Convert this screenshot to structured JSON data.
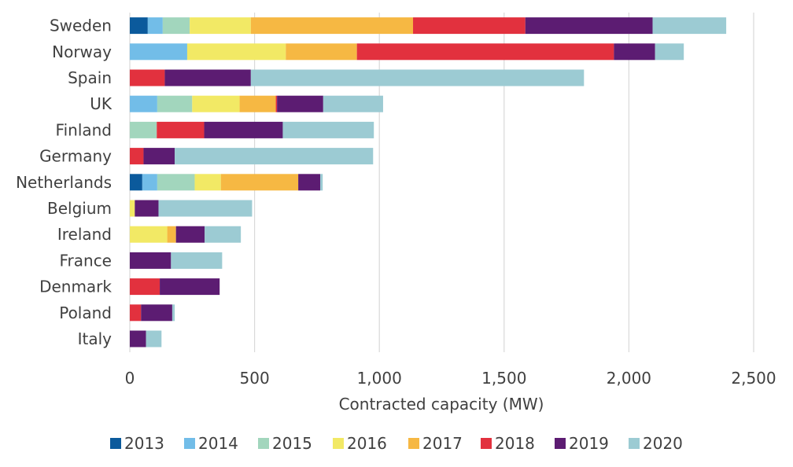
{
  "chart_data": {
    "type": "bar",
    "orientation": "horizontal",
    "stacked": true,
    "title": "",
    "xlabel": "Contracted capacity (MW)",
    "ylabel": "",
    "xlim": [
      0,
      2500
    ],
    "xticks": [
      0,
      500,
      1000,
      1500,
      2000,
      2500
    ],
    "xtick_labels": [
      "0",
      "500",
      "1,000",
      "1,500",
      "2,000",
      "2,500"
    ],
    "grid": "vertical",
    "legend_position": "bottom",
    "categories": [
      "Sweden",
      "Norway",
      "Spain",
      "UK",
      "Finland",
      "Germany",
      "Netherlands",
      "Belgium",
      "Ireland",
      "France",
      "Denmark",
      "Poland",
      "Italy"
    ],
    "series": [
      {
        "name": "2013",
        "color": "#0b5a9c",
        "values": [
          72,
          0,
          0,
          0,
          0,
          0,
          50,
          0,
          0,
          0,
          0,
          0,
          0
        ]
      },
      {
        "name": "2014",
        "color": "#72bde8",
        "values": [
          60,
          230,
          0,
          110,
          0,
          0,
          60,
          0,
          0,
          0,
          0,
          0,
          0
        ]
      },
      {
        "name": "2015",
        "color": "#a2d6bd",
        "values": [
          108,
          0,
          0,
          140,
          108,
          0,
          150,
          0,
          0,
          0,
          0,
          0,
          0
        ]
      },
      {
        "name": "2016",
        "color": "#f2e965",
        "values": [
          245,
          395,
          0,
          190,
          0,
          0,
          105,
          20,
          150,
          0,
          0,
          0,
          0
        ]
      },
      {
        "name": "2017",
        "color": "#f6b843",
        "values": [
          650,
          285,
          0,
          145,
          0,
          0,
          310,
          0,
          35,
          0,
          0,
          0,
          0
        ]
      },
      {
        "name": "2018",
        "color": "#e2313e",
        "values": [
          450,
          1030,
          140,
          5,
          190,
          55,
          0,
          0,
          0,
          0,
          120,
          45,
          0
        ]
      },
      {
        "name": "2019",
        "color": "#5c1c72",
        "values": [
          510,
          165,
          345,
          185,
          315,
          125,
          88,
          95,
          115,
          165,
          240,
          125,
          65
        ]
      },
      {
        "name": "2020",
        "color": "#9ccbd3",
        "values": [
          295,
          115,
          1335,
          240,
          365,
          795,
          10,
          375,
          145,
          205,
          0,
          10,
          62
        ]
      }
    ]
  }
}
